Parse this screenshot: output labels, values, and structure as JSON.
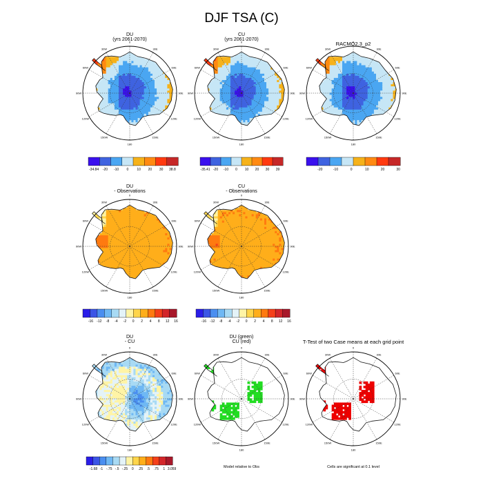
{
  "page": {
    "title": "DJF TSA (C)"
  },
  "panels": [
    {
      "id": "du",
      "title": [
        "DU",
        "(yrs 2061-2070)"
      ],
      "field": "temp_du",
      "colorbar": {
        "colors": [
          "#3a10ee",
          "#3f63e0",
          "#4aa6f2",
          "#c6e6f6",
          "#f6b21a",
          "#ff8a12",
          "#ff3a10",
          "#c62828"
        ],
        "labels": [
          "-34.84",
          "-20",
          "-10",
          "0",
          "10",
          "20",
          "30",
          "38.8"
        ]
      }
    },
    {
      "id": "cu",
      "title": [
        "CU",
        "(yrs 2061-2070)"
      ],
      "field": "temp_cu",
      "colorbar": {
        "colors": [
          "#3a10ee",
          "#3f63e0",
          "#4aa6f2",
          "#c6e6f6",
          "#f6b21a",
          "#ff8a12",
          "#ff3a10",
          "#c62828"
        ],
        "labels": [
          "-35.41",
          "-20",
          "-10",
          "0",
          "10",
          "20",
          "30",
          "39"
        ]
      }
    },
    {
      "id": "racmo",
      "title": [
        "RACMO2.3_p2"
      ],
      "field": "temp_obs",
      "colorbar": {
        "colors": [
          "#3a10ee",
          "#3f63e0",
          "#4aa6f2",
          "#c6e6f6",
          "#f6b21a",
          "#ff8a12",
          "#ff3a10",
          "#c62828"
        ],
        "labels": [
          "-20",
          "-10",
          "0",
          "10",
          "20",
          "30"
        ]
      }
    },
    {
      "id": "du-obs",
      "title": [
        "DU",
        "- Observations"
      ],
      "field": "diff_du",
      "colorbar": {
        "colors": [
          "#2a1de8",
          "#3b55e6",
          "#4a8ef0",
          "#6fb8f4",
          "#a8daf4",
          "#e4f3f8",
          "#fff4a6",
          "#ffd54a",
          "#ffae1a",
          "#ff7a10",
          "#f5401a",
          "#d3262a",
          "#a8182a"
        ],
        "labels": [
          "-16",
          "-12",
          "-8",
          "-4",
          "-2",
          "0",
          "2",
          "4",
          "8",
          "12",
          "16"
        ]
      }
    },
    {
      "id": "cu-obs",
      "title": [
        "CU",
        "- Observations"
      ],
      "field": "diff_cu",
      "colorbar": {
        "colors": [
          "#2a1de8",
          "#3b55e6",
          "#4a8ef0",
          "#6fb8f4",
          "#a8daf4",
          "#e4f3f8",
          "#fff4a6",
          "#ffd54a",
          "#ffae1a",
          "#ff7a10",
          "#f5401a",
          "#d3262a",
          "#a8182a"
        ],
        "labels": [
          "-16",
          "-12",
          "-8",
          "-4",
          "-2",
          "0",
          "2",
          "4",
          "8",
          "12",
          "16"
        ]
      }
    },
    {
      "id": "du-cu",
      "title": [
        "DU",
        "- CU"
      ],
      "field": "diff_du_cu",
      "colorbar": {
        "colors": [
          "#2a1de8",
          "#3b55e6",
          "#4a8ef0",
          "#6fb8f4",
          "#a8daf4",
          "#e4f3f8",
          "#fff4a6",
          "#ffd54a",
          "#ffae1a",
          "#ff7a10",
          "#f5401a",
          "#d3262a",
          "#a8182a"
        ],
        "labels": [
          "-1.68",
          "-1",
          "-.75",
          "-.5",
          "-.25",
          "0",
          ".25",
          ".5",
          ".75",
          "1",
          "3.059"
        ]
      }
    },
    {
      "id": "model-rel",
      "title": [
        "DU (green)",
        "CU (red)"
      ],
      "field": "sig_model",
      "caption": "Model relative to Obs"
    },
    {
      "id": "ttest",
      "title": [
        "T-Test of two Case means at each grid point"
      ],
      "field": "sig_ttest",
      "caption": "Cells are significant at 0.1 level"
    }
  ],
  "lon_labels": [
    "0",
    "30E",
    "60E",
    "90E",
    "120E",
    "150E",
    "180",
    "150W",
    "120W",
    "90W",
    "60W",
    "30W"
  ],
  "chart_data": [
    {
      "type": "heatmap",
      "title": "DU (yrs 2061-2070)",
      "projection": "south polar stereographic",
      "variable": "DJF TSA (C)",
      "range": [
        -34.84,
        38.8
      ],
      "summary": {
        "interior_plateau": -30,
        "west_antarctica": -15,
        "coast": -5,
        "peninsula": 2
      }
    },
    {
      "type": "heatmap",
      "title": "CU (yrs 2061-2070)",
      "projection": "south polar stereographic",
      "variable": "DJF TSA (C)",
      "range": [
        -35.41,
        39
      ],
      "summary": {
        "interior_plateau": -30,
        "west_antarctica": -15,
        "coast": -5,
        "peninsula": 2
      }
    },
    {
      "type": "heatmap",
      "title": "RACMO2.3_p2",
      "projection": "south polar stereographic",
      "variable": "DJF TSA (C)",
      "summary": {
        "interior_plateau": -30,
        "west_antarctica": -16,
        "coast": -6,
        "peninsula": 1
      }
    },
    {
      "type": "heatmap",
      "title": "DU - Observations",
      "range": [
        -16,
        16
      ],
      "summary": {
        "interior": 6,
        "coast": 8,
        "peninsula": 2
      }
    },
    {
      "type": "heatmap",
      "title": "CU - Observations",
      "range": [
        -16,
        16
      ],
      "summary": {
        "interior": 6,
        "coast": 8,
        "peninsula": 2
      }
    },
    {
      "type": "heatmap",
      "title": "DU - CU",
      "range": [
        -1.68,
        3.059
      ],
      "summary": {
        "east_interior": -0.9,
        "west_interior": 0.2,
        "peninsula": -0.5
      }
    },
    {
      "type": "heatmap",
      "title": "DU (green) CU (red)",
      "caption": "Model relative to Obs"
    },
    {
      "type": "heatmap",
      "title": "T-Test of two Case means at each grid point",
      "caption": "Cells are significant at 0.1 level"
    }
  ]
}
